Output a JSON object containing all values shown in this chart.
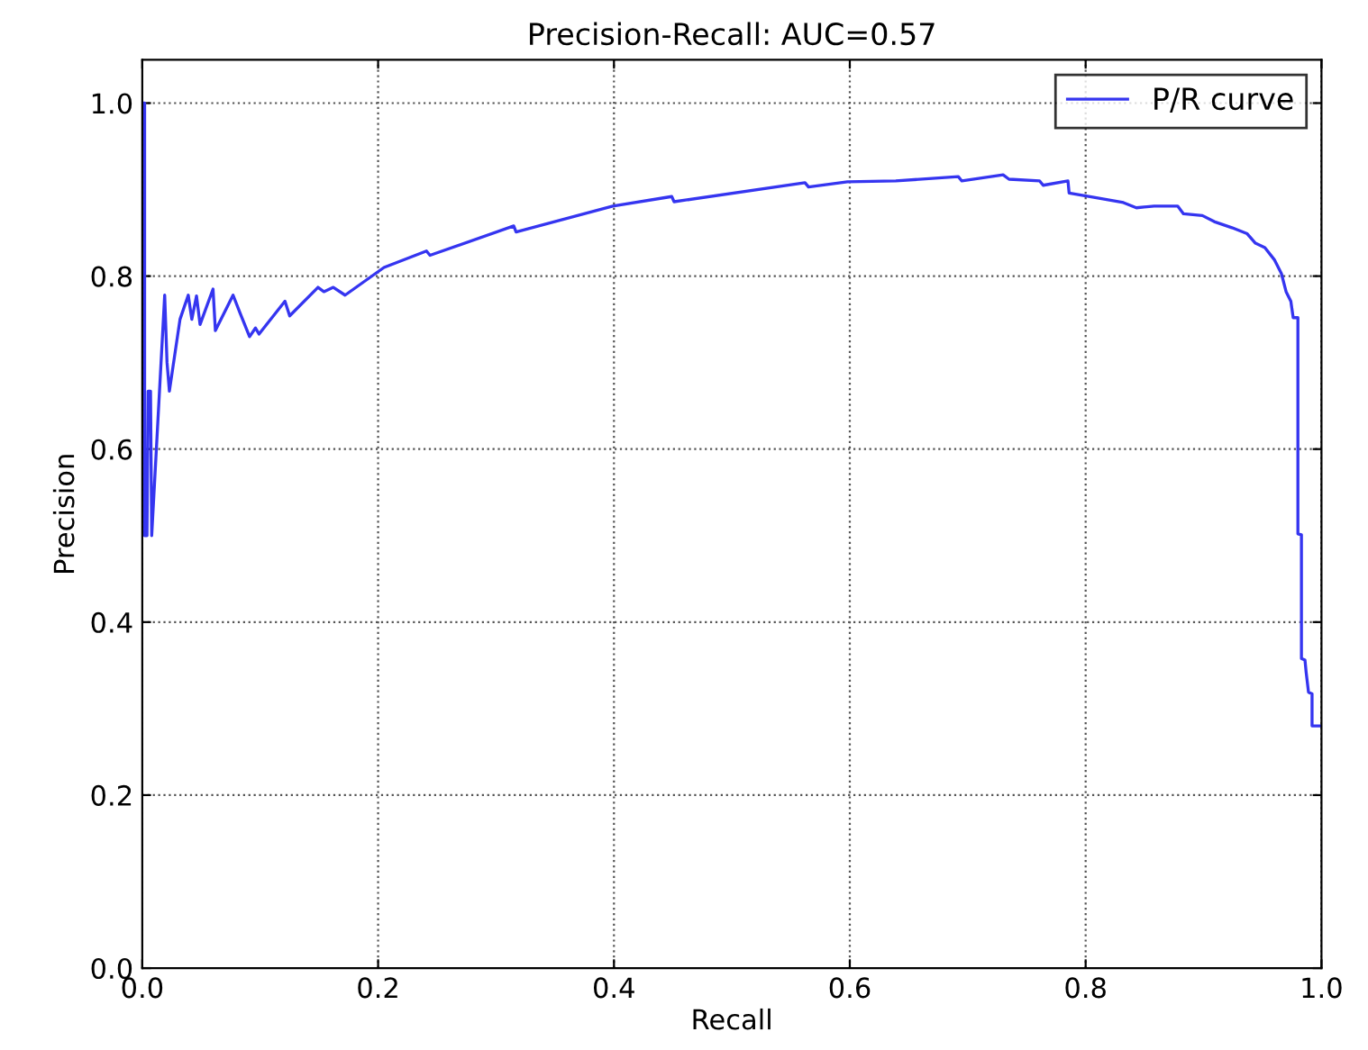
{
  "chart_data": {
    "type": "line",
    "title": "Precision-Recall: AUC=0.57",
    "xlabel": "Recall",
    "ylabel": "Precision",
    "xlim": [
      0,
      1
    ],
    "ylim": [
      0,
      1.05
    ],
    "xticks": [
      {
        "value": 0,
        "label": "0.0"
      },
      {
        "value": 0.2,
        "label": "0.2"
      },
      {
        "value": 0.4,
        "label": "0.4"
      },
      {
        "value": 0.6,
        "label": "0.6"
      },
      {
        "value": 0.8,
        "label": "0.8"
      },
      {
        "value": 1,
        "label": "1.0"
      }
    ],
    "yticks": [
      {
        "value": 0,
        "label": "0.0"
      },
      {
        "value": 0.2,
        "label": "0.2"
      },
      {
        "value": 0.4,
        "label": "0.4"
      },
      {
        "value": 0.6,
        "label": "0.6"
      },
      {
        "value": 0.8,
        "label": "0.8"
      },
      {
        "value": 1,
        "label": "1.0"
      }
    ],
    "grid": true,
    "legend": "top right",
    "line_style": "solid",
    "marker": "none",
    "series": [
      {
        "name": "P/R curve",
        "color": "#3535f0",
        "x": [
          0,
          0.002,
          0.002,
          0.004,
          0.005,
          0.007,
          0.008,
          0.019,
          0.021,
          0.023,
          0.032,
          0.039,
          0.042,
          0.046,
          0.049,
          0.06,
          0.062,
          0.077,
          0.083,
          0.091,
          0.096,
          0.099,
          0.121,
          0.125,
          0.149,
          0.154,
          0.162,
          0.172,
          0.205,
          0.241,
          0.244,
          0.315,
          0.317,
          0.399,
          0.449,
          0.451,
          0.562,
          0.565,
          0.598,
          0.639,
          0.692,
          0.695,
          0.73,
          0.735,
          0.761,
          0.764,
          0.785,
          0.786,
          0.807,
          0.832,
          0.843,
          0.858,
          0.878,
          0.883,
          0.899,
          0.909,
          0.924,
          0.937,
          0.944,
          0.952,
          0.96,
          0.966,
          0.97,
          0.974,
          0.976,
          0.98,
          0.98,
          0.983,
          0.983,
          0.986,
          0.987,
          0.989,
          0.992,
          0.992,
          1.0
        ],
        "values": [
          1.0,
          1.0,
          0.5,
          0.5,
          0.667,
          0.667,
          0.5,
          0.778,
          0.7,
          0.667,
          0.75,
          0.778,
          0.75,
          0.777,
          0.744,
          0.785,
          0.737,
          0.778,
          0.757,
          0.73,
          0.74,
          0.733,
          0.771,
          0.754,
          0.787,
          0.782,
          0.787,
          0.778,
          0.81,
          0.829,
          0.824,
          0.858,
          0.851,
          0.881,
          0.892,
          0.886,
          0.908,
          0.903,
          0.909,
          0.91,
          0.915,
          0.91,
          0.917,
          0.912,
          0.91,
          0.905,
          0.91,
          0.896,
          0.891,
          0.885,
          0.879,
          0.881,
          0.881,
          0.872,
          0.87,
          0.863,
          0.856,
          0.849,
          0.838,
          0.833,
          0.819,
          0.803,
          0.782,
          0.771,
          0.752,
          0.752,
          0.502,
          0.501,
          0.358,
          0.356,
          0.342,
          0.319,
          0.317,
          0.28,
          0.28
        ]
      }
    ]
  }
}
